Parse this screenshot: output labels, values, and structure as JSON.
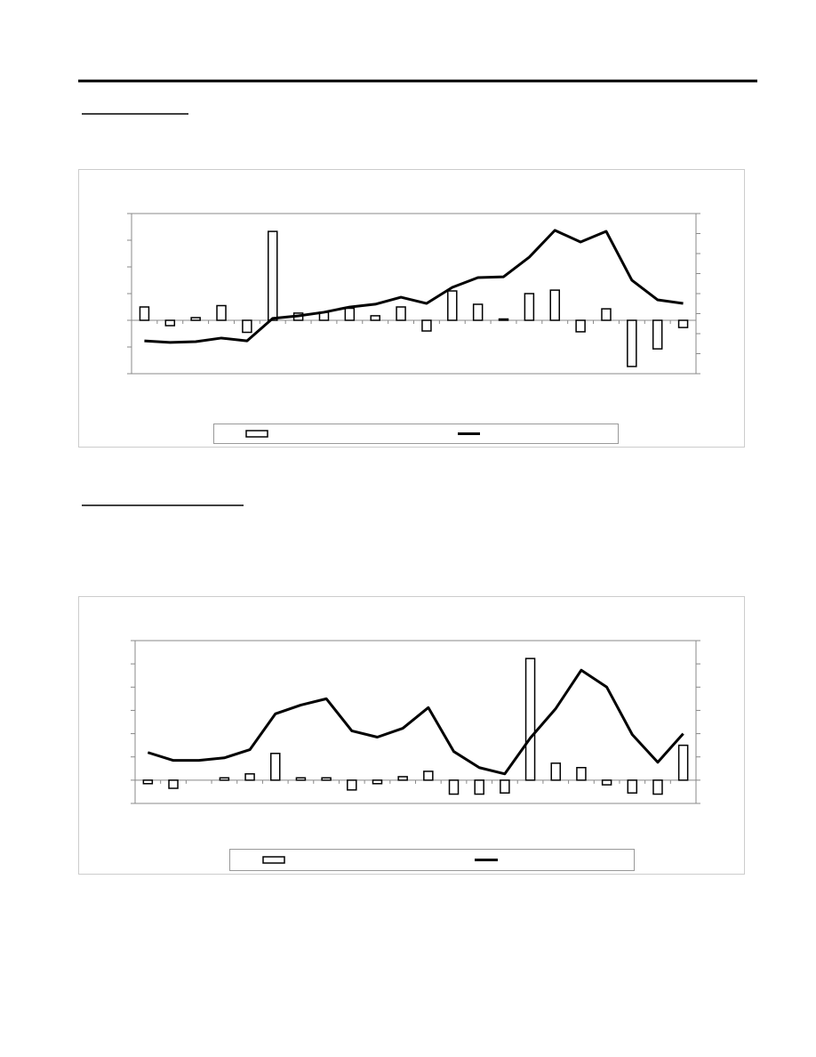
{
  "chart_data": [
    {
      "type": "bar_line",
      "categories": [
        null,
        null,
        null,
        null,
        null,
        null,
        null,
        null,
        null,
        null,
        null,
        null,
        null,
        null,
        null,
        null,
        null,
        null,
        null,
        null,
        null,
        null
      ],
      "series": [
        {
          "type": "bar",
          "color": "#ffffff",
          "values": [
            0.5,
            -0.2,
            0.1,
            0.55,
            -0.45,
            3.33,
            0.27,
            0.3,
            0.45,
            0.17,
            0.5,
            -0.4,
            1.1,
            0.6,
            0.05,
            1.0,
            1.13,
            -0.43,
            0.43,
            -1.73,
            -1.07,
            -0.27
          ]
        },
        {
          "type": "line",
          "axis": "y2",
          "color": "#000000",
          "values": [
            -1.36,
            -1.44,
            -1.4,
            -1.22,
            -1.36,
            -0.24,
            -0.11,
            0.07,
            0.33,
            0.47,
            0.82,
            0.51,
            1.31,
            1.8,
            1.84,
            2.82,
            4.16,
            3.58,
            4.11,
            1.67,
            0.69,
            0.51
          ]
        }
      ],
      "ylim": [
        -2,
        4
      ],
      "yticks": [
        -2,
        -1,
        0,
        1,
        2,
        3,
        4
      ],
      "y2lim": [
        -3,
        5
      ],
      "y2ticks": [
        -3,
        -2,
        -1,
        0,
        1,
        2,
        3,
        4,
        5
      ]
    },
    {
      "type": "bar_line",
      "categories": [
        null,
        null,
        null,
        null,
        null,
        null,
        null,
        null,
        null,
        null,
        null,
        null,
        null,
        null,
        null,
        null,
        null,
        null,
        null,
        null,
        null,
        null
      ],
      "series": [
        {
          "type": "bar",
          "color": "#ffffff",
          "values": [
            -0.15,
            -0.35,
            0,
            0.1,
            0.27,
            1.15,
            0.1,
            0.1,
            -0.42,
            -0.15,
            0.15,
            0.38,
            -0.6,
            -0.6,
            -0.55,
            5.23,
            0.73,
            0.54,
            -0.2,
            -0.55,
            -0.6,
            1.5
          ]
        },
        {
          "type": "line",
          "axis": "y2",
          "color": "#000000",
          "values": [
            2.19,
            1.85,
            1.85,
            1.96,
            2.31,
            3.85,
            4.23,
            4.5,
            3.12,
            2.85,
            3.23,
            4.12,
            2.23,
            1.54,
            1.27,
            2.81,
            4.08,
            5.73,
            5,
            2.96,
            1.77,
            3.0
          ]
        }
      ],
      "ylim": [
        -1,
        6
      ],
      "yticks": [
        -1,
        0,
        1,
        2,
        3,
        4,
        5,
        6
      ],
      "y2lim": [
        0,
        7
      ],
      "y2ticks": [
        0,
        1,
        2,
        3,
        4,
        5,
        6,
        7
      ]
    }
  ]
}
